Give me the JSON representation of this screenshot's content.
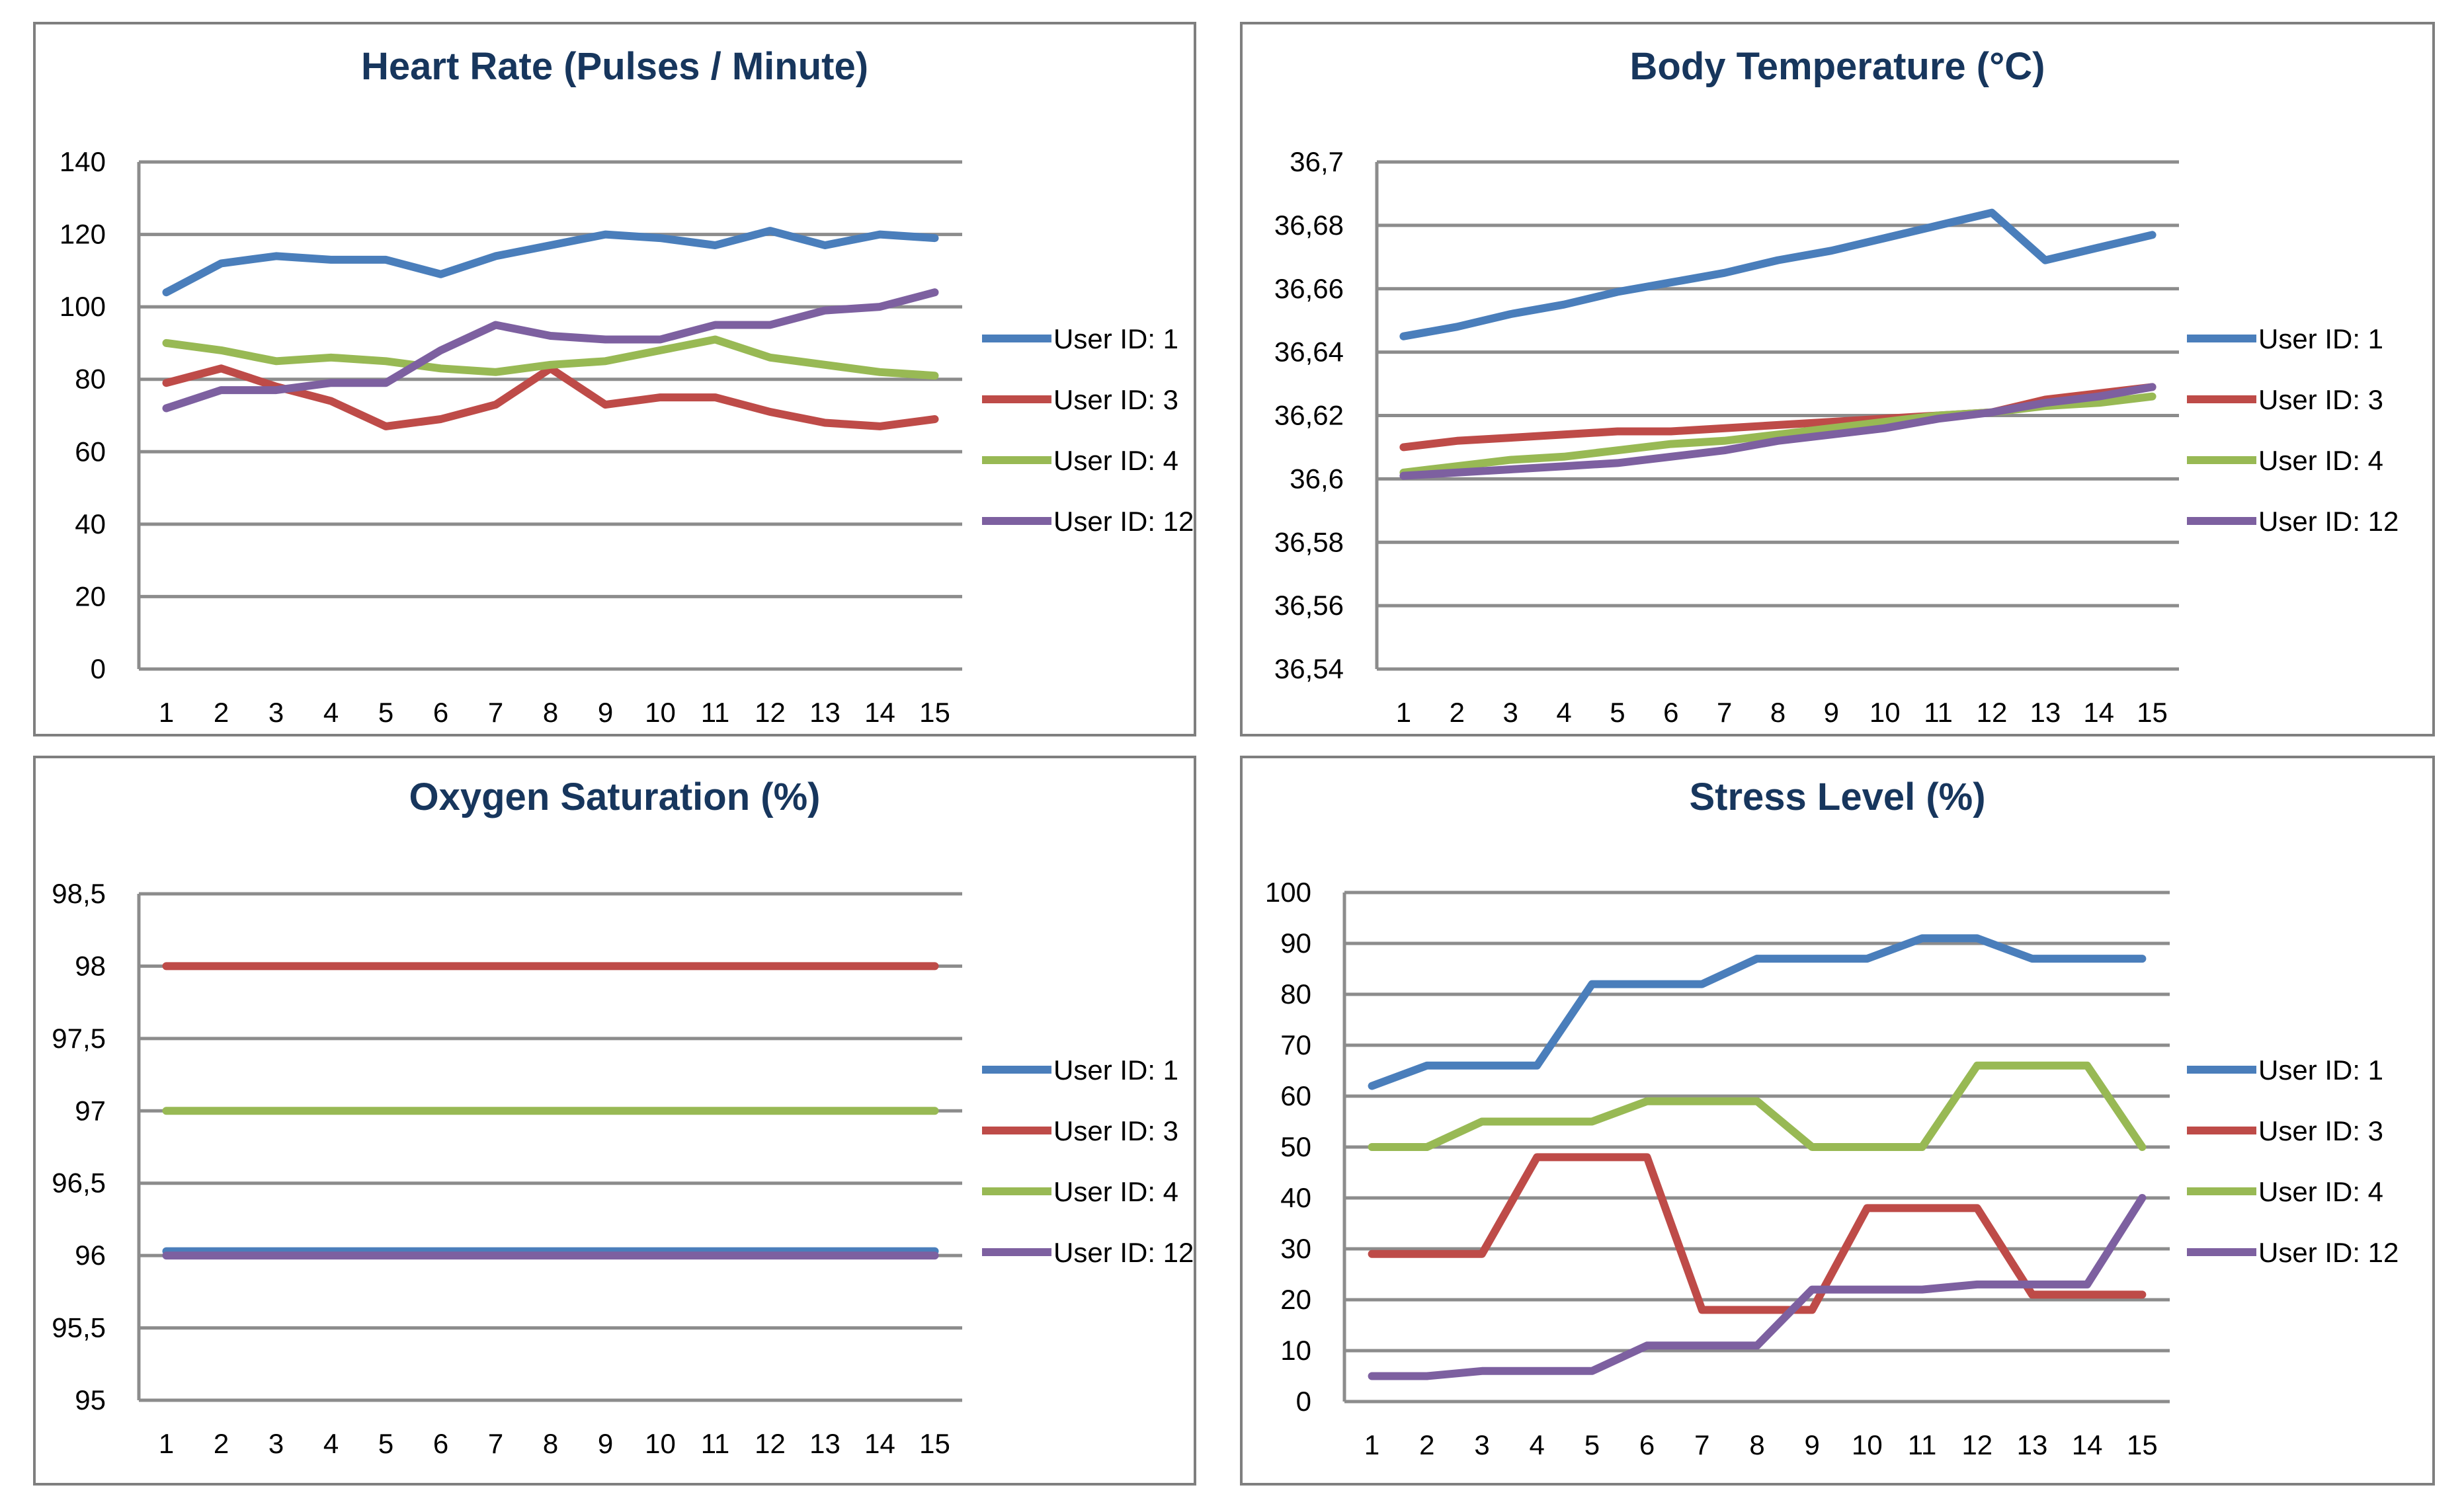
{
  "chart_data": [
    {
      "type": "line",
      "title": "Heart Rate (Pulses / Minute)",
      "xlabel": "",
      "ylabel": "",
      "categories": [
        1,
        2,
        3,
        4,
        5,
        6,
        7,
        8,
        9,
        10,
        11,
        12,
        13,
        14,
        15
      ],
      "ylim": [
        0,
        140
      ],
      "yticks": [
        "0",
        "20",
        "40",
        "60",
        "80",
        "100",
        "120",
        "140"
      ],
      "ytick_values": [
        0,
        20,
        40,
        60,
        80,
        100,
        120,
        140
      ],
      "grid": true,
      "legend": "right",
      "series": [
        {
          "name": "User ID: 1",
          "color": "#4a7ebb",
          "values": [
            104,
            112,
            114,
            113,
            113,
            109,
            114,
            117,
            120,
            119,
            117,
            121,
            117,
            120,
            119
          ]
        },
        {
          "name": "User ID: 3",
          "color": "#be4b48",
          "values": [
            79,
            83,
            78,
            74,
            67,
            69,
            73,
            83,
            73,
            75,
            75,
            71,
            68,
            67,
            69
          ]
        },
        {
          "name": "User ID: 4",
          "color": "#98b954",
          "values": [
            90,
            88,
            85,
            86,
            85,
            83,
            82,
            84,
            85,
            88,
            91,
            86,
            84,
            82,
            81
          ]
        },
        {
          "name": "User ID: 12",
          "color": "#7d60a0",
          "values": [
            72,
            77,
            77,
            79,
            79,
            88,
            95,
            92,
            91,
            91,
            95,
            95,
            99,
            100,
            104
          ]
        }
      ]
    },
    {
      "type": "line",
      "title": "Body Temperature (°C)",
      "xlabel": "",
      "ylabel": "",
      "categories": [
        1,
        2,
        3,
        4,
        5,
        6,
        7,
        8,
        9,
        10,
        11,
        12,
        13,
        14,
        15
      ],
      "ylim": [
        36.54,
        36.7
      ],
      "yticks": [
        "36,54",
        "36,56",
        "36,58",
        "36,6",
        "36,62",
        "36,64",
        "36,66",
        "36,68",
        "36,7"
      ],
      "ytick_values": [
        36.54,
        36.56,
        36.58,
        36.6,
        36.62,
        36.64,
        36.66,
        36.68,
        36.7
      ],
      "grid": true,
      "legend": "right",
      "series": [
        {
          "name": "User ID: 1",
          "color": "#4a7ebb",
          "values": [
            36.645,
            36.648,
            36.652,
            36.655,
            36.659,
            36.662,
            36.665,
            36.669,
            36.672,
            36.676,
            36.68,
            36.684,
            36.669,
            36.673,
            36.677
          ]
        },
        {
          "name": "User ID: 3",
          "color": "#be4b48",
          "values": [
            36.61,
            36.612,
            36.613,
            36.614,
            36.615,
            36.615,
            36.616,
            36.617,
            36.618,
            36.619,
            36.62,
            36.621,
            36.625,
            36.627,
            36.629
          ]
        },
        {
          "name": "User ID: 4",
          "color": "#98b954",
          "values": [
            36.602,
            36.604,
            36.606,
            36.607,
            36.609,
            36.611,
            36.612,
            36.614,
            36.616,
            36.618,
            36.62,
            36.621,
            36.623,
            36.624,
            36.626
          ]
        },
        {
          "name": "User ID: 12",
          "color": "#7d60a0",
          "values": [
            36.601,
            36.602,
            36.603,
            36.604,
            36.605,
            36.607,
            36.609,
            36.612,
            36.614,
            36.616,
            36.619,
            36.621,
            36.624,
            36.626,
            36.629
          ]
        }
      ]
    },
    {
      "type": "line",
      "title": "Oxygen Saturation (%)",
      "xlabel": "",
      "ylabel": "",
      "categories": [
        1,
        2,
        3,
        4,
        5,
        6,
        7,
        8,
        9,
        10,
        11,
        12,
        13,
        14,
        15
      ],
      "ylim": [
        95,
        98.5
      ],
      "yticks": [
        "95",
        "95,5",
        "96",
        "96,5",
        "97",
        "97,5",
        "98",
        "98,5"
      ],
      "ytick_values": [
        95,
        95.5,
        96,
        96.5,
        97,
        97.5,
        98,
        98.5
      ],
      "grid": true,
      "legend": "right",
      "series": [
        {
          "name": "User ID: 1",
          "color": "#4a7ebb",
          "values": [
            96.03,
            96.03,
            96.03,
            96.03,
            96.03,
            96.03,
            96.03,
            96.03,
            96.03,
            96.03,
            96.03,
            96.03,
            96.03,
            96.03,
            96.03
          ]
        },
        {
          "name": "User ID: 3",
          "color": "#be4b48",
          "values": [
            98,
            98,
            98,
            98,
            98,
            98,
            98,
            98,
            98,
            98,
            98,
            98,
            98,
            98,
            98
          ]
        },
        {
          "name": "User ID: 4",
          "color": "#98b954",
          "values": [
            97,
            97,
            97,
            97,
            97,
            97,
            97,
            97,
            97,
            97,
            97,
            97,
            97,
            97,
            97
          ]
        },
        {
          "name": "User ID: 12",
          "color": "#7d60a0",
          "values": [
            96,
            96,
            96,
            96,
            96,
            96,
            96,
            96,
            96,
            96,
            96,
            96,
            96,
            96,
            96
          ]
        }
      ]
    },
    {
      "type": "line",
      "title": "Stress Level (%)",
      "xlabel": "",
      "ylabel": "",
      "categories": [
        1,
        2,
        3,
        4,
        5,
        6,
        7,
        8,
        9,
        10,
        11,
        12,
        13,
        14,
        15
      ],
      "ylim": [
        0,
        100
      ],
      "yticks": [
        "0",
        "10",
        "20",
        "30",
        "40",
        "50",
        "60",
        "70",
        "80",
        "90",
        "100"
      ],
      "ytick_values": [
        0,
        10,
        20,
        30,
        40,
        50,
        60,
        70,
        80,
        90,
        100
      ],
      "grid": true,
      "legend": "right",
      "series": [
        {
          "name": "User ID: 1",
          "color": "#4a7ebb",
          "values": [
            62,
            66,
            66,
            66,
            82,
            82,
            82,
            87,
            87,
            87,
            91,
            91,
            87,
            87,
            87
          ]
        },
        {
          "name": "User ID: 3",
          "color": "#be4b48",
          "values": [
            29,
            29,
            29,
            48,
            48,
            48,
            18,
            18,
            18,
            38,
            38,
            38,
            21,
            21,
            21
          ]
        },
        {
          "name": "User ID: 4",
          "color": "#98b954",
          "values": [
            50,
            50,
            55,
            55,
            55,
            59,
            59,
            59,
            50,
            50,
            50,
            66,
            66,
            66,
            50
          ]
        },
        {
          "name": "User ID: 12",
          "color": "#7d60a0",
          "values": [
            5,
            5,
            6,
            6,
            6,
            11,
            11,
            11,
            22,
            22,
            22,
            23,
            23,
            23,
            40
          ]
        }
      ]
    }
  ]
}
